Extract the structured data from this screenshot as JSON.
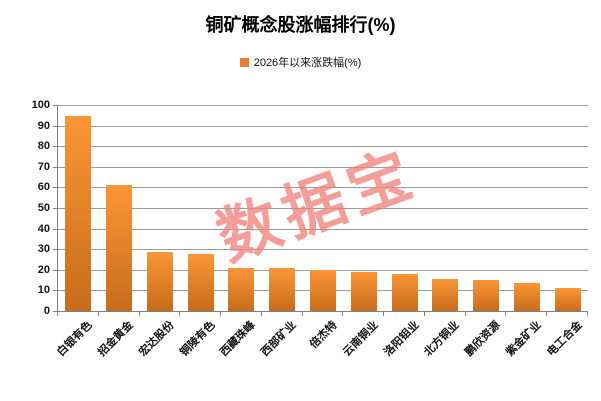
{
  "title": "铜矿概念股涨幅排行(%)",
  "legend": {
    "label": "2026年以来涨跌幅(%)",
    "marker_color": "#E87E2B"
  },
  "watermark": {
    "text": "数据宝",
    "color": "#F0837C"
  },
  "chart_data": {
    "type": "bar",
    "title": "铜矿概念股涨幅排行(%)",
    "legend_entries": [
      "2026年以来涨跌幅(%)"
    ],
    "legend_position": "top",
    "categories": [
      "白银有色",
      "招金黄金",
      "宏达股份",
      "铜陵有色",
      "西藏珠峰",
      "西部矿业",
      "倍杰特",
      "云南铜业",
      "洛阳钼业",
      "北方铜业",
      "鹏欣资源",
      "紫金矿业",
      "电工合金"
    ],
    "values": [
      94.5,
      61,
      28.5,
      27.5,
      21,
      21,
      20,
      19,
      18,
      15.5,
      15,
      13.5,
      11
    ],
    "xlabel": "",
    "ylabel": "",
    "ylim": [
      0,
      100
    ],
    "ytick_step": 10,
    "grid": true,
    "bar_color_top": "#FC9637",
    "bar_color_bottom": "#C66C1B",
    "axis_color": "#808080",
    "grid_color": "#9B9B9B"
  }
}
